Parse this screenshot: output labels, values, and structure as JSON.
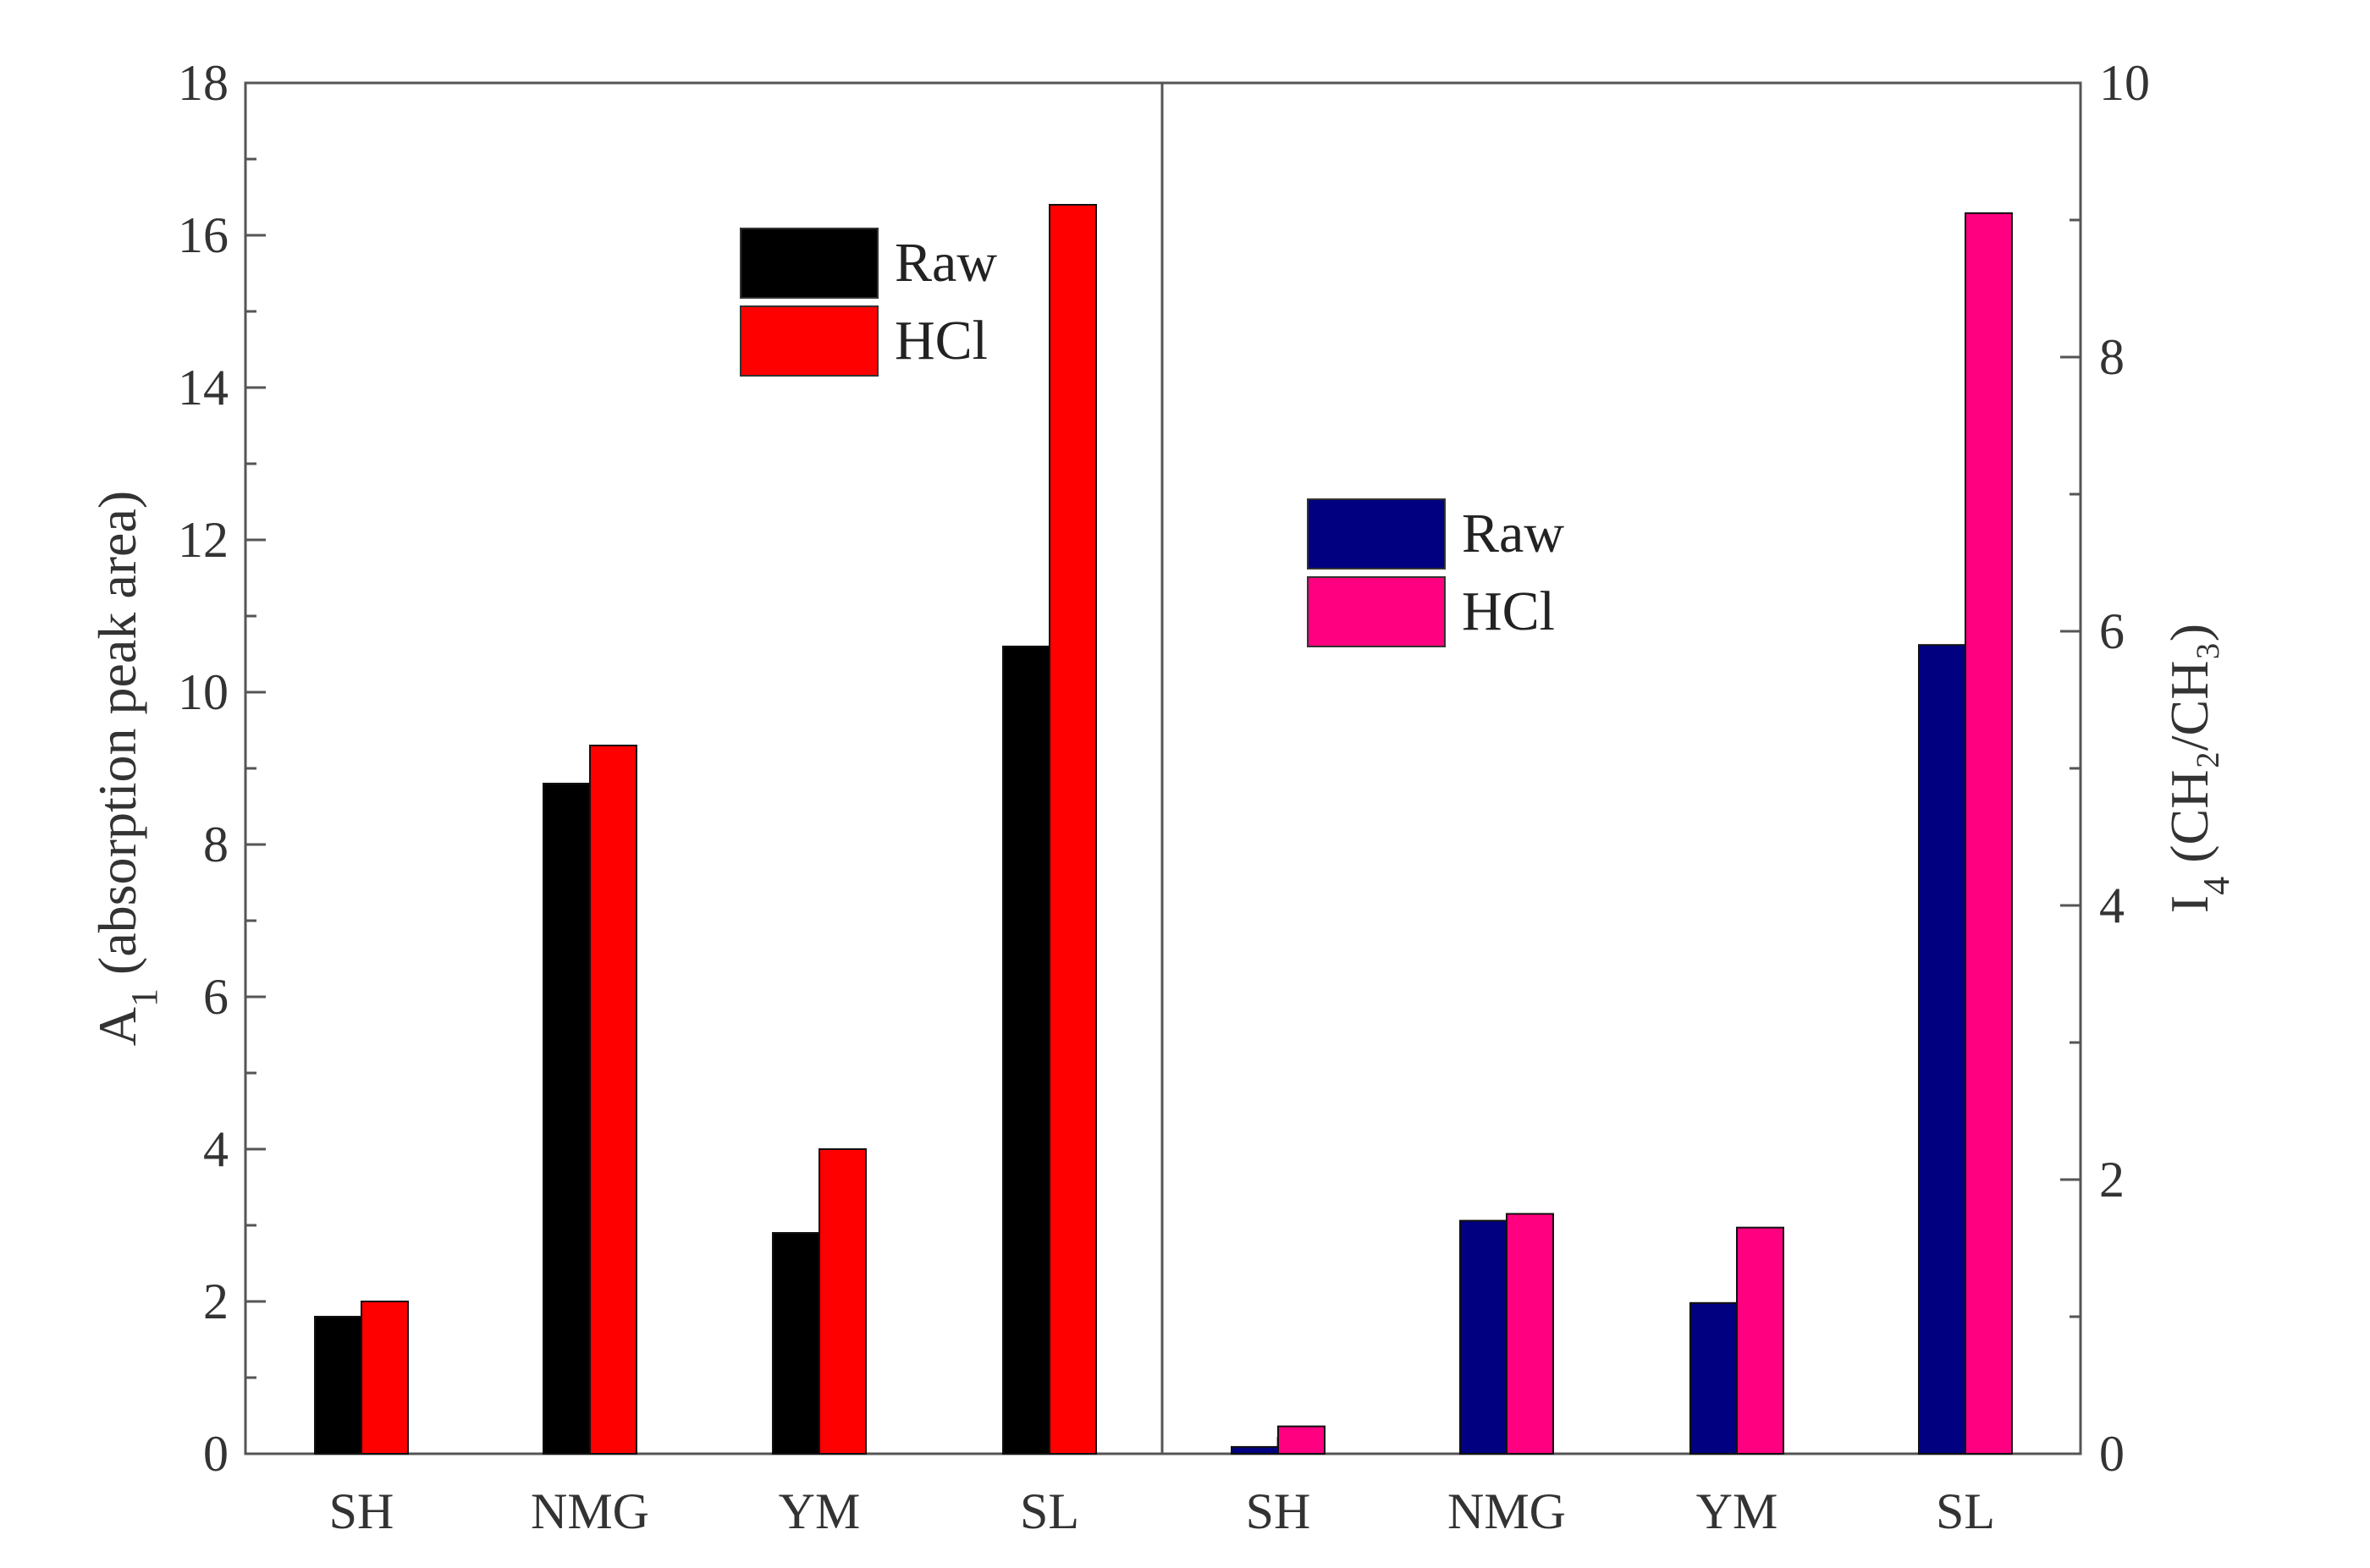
{
  "chart_data": {
    "type": "bar",
    "panels": [
      {
        "categories": [
          "SH",
          "NMG",
          "YM",
          "SL"
        ],
        "ylabel": "A",
        "ylabel_subscript": "1",
        "ylabel_suffix": " (absorption peak area)",
        "yaxis_side": "left",
        "ylim": [
          0,
          18
        ],
        "yticks": [
          "0",
          "2",
          "4",
          "6",
          "8",
          "10",
          "12",
          "14",
          "16",
          "18"
        ],
        "legend_position": "top-center",
        "series": [
          {
            "name": "Raw",
            "color": "#000000",
            "values": [
              1.8,
              8.8,
              2.9,
              10.6
            ]
          },
          {
            "name": "HCl",
            "color": "#ff0000",
            "values": [
              2.0,
              9.3,
              4.0,
              16.4
            ]
          }
        ]
      },
      {
        "categories": [
          "SH",
          "NMG",
          "YM",
          "SL"
        ],
        "ylabel": "I",
        "ylabel_subscript": "4",
        "ylabel_suffix": " (CH₂/CH₃)",
        "yaxis_side": "right",
        "ylim": [
          0,
          10
        ],
        "yticks": [
          "0",
          "2",
          "4",
          "6",
          "8",
          "10"
        ],
        "legend_position": "top-center",
        "series": [
          {
            "name": "Raw",
            "color": "#000080",
            "values": [
              0.05,
              1.7,
              1.1,
              5.9
            ]
          },
          {
            "name": "HCl",
            "color": "#ff0080",
            "values": [
              0.2,
              1.75,
              1.65,
              9.05
            ]
          }
        ]
      }
    ]
  }
}
